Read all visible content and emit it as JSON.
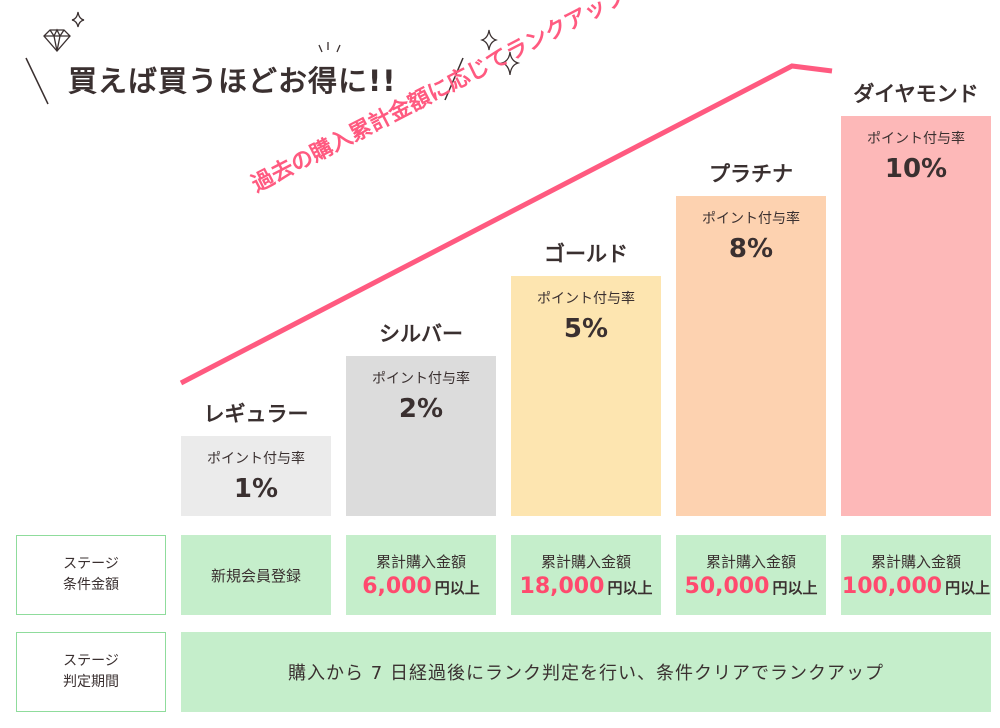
{
  "headline": "買えば買うほどお得に!!",
  "slogan": "過去の購入累計金額に応じてランクアップ!!",
  "colors": {
    "accent": "#ff5a80",
    "amount": "#ff4a6e",
    "cell_green": "#c5eecb"
  },
  "rate_label": "ポイント付与率",
  "ranks": [
    {
      "name": "レギュラー",
      "rate": "1%",
      "color": "#ebebeb",
      "condition_label": "新規会員登録",
      "amount": "",
      "suffix": ""
    },
    {
      "name": "シルバー",
      "rate": "2%",
      "color": "#dcdcdc",
      "condition_label": "累計購入金額",
      "amount": "6,000",
      "suffix": "円以上"
    },
    {
      "name": "ゴールド",
      "rate": "5%",
      "color": "#fde5b0",
      "condition_label": "累計購入金額",
      "amount": "18,000",
      "suffix": "円以上"
    },
    {
      "name": "プラチナ",
      "rate": "8%",
      "color": "#fdd2b0",
      "condition_label": "累計購入金額",
      "amount": "50,000",
      "suffix": "円以上"
    },
    {
      "name": "ダイヤモンド",
      "rate": "10%",
      "color": "#fdb8b8",
      "condition_label": "累計購入金額",
      "amount": "100,000",
      "suffix": "円以上"
    }
  ],
  "table": {
    "condition_header": "ステージ\n条件金額",
    "period_header": "ステージ\n判定期間",
    "period_text": "購入から 7 日経過後にランク判定を行い、条件クリアでランクアップ"
  }
}
